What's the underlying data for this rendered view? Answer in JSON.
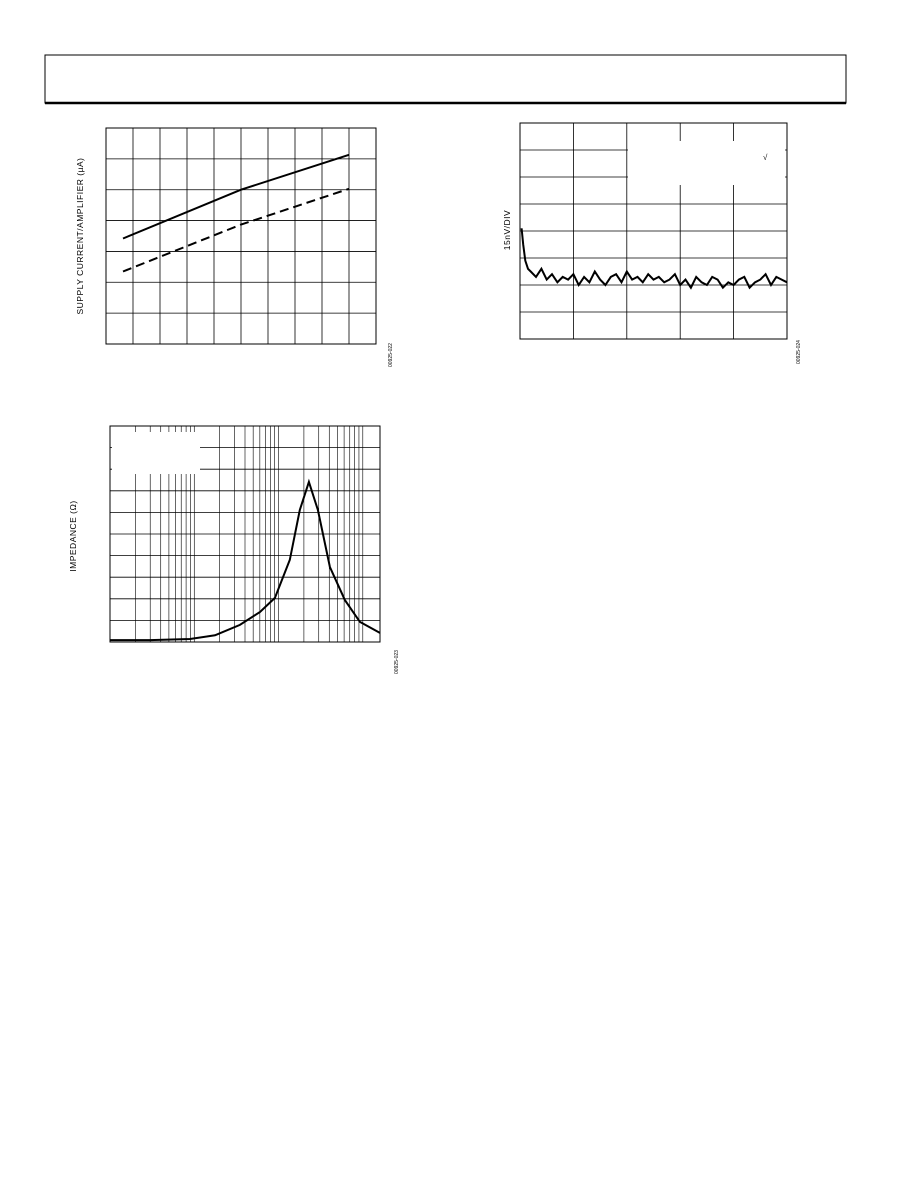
{
  "chart_data": [
    {
      "type": "line",
      "ylabel": "SUPPLY CURRENT/AMPLIFIER (µA)",
      "figure_id": "00925-022",
      "xlim": [
        0,
        10
      ],
      "ylim": [
        0,
        7
      ],
      "grid": true,
      "x": [
        0.63,
        5,
        9
      ],
      "series": [
        {
          "color": "#000000",
          "dashed": false,
          "values": [
            3.42,
            5.0,
            6.13
          ]
        },
        {
          "color": "#000000",
          "dashed": true,
          "values": [
            2.35,
            3.87,
            5.03
          ]
        }
      ]
    },
    {
      "type": "line",
      "ylabel": "15nV/DIV",
      "figure_id": "00925-024",
      "annotation": "√",
      "xlim": [
        0,
        5
      ],
      "ylim": [
        0,
        8
      ],
      "grid": true,
      "x": [
        0.03,
        0.06,
        0.1,
        0.15,
        0.2,
        0.3,
        0.4,
        0.5,
        0.6,
        0.7,
        0.8,
        0.9,
        1.0,
        1.1,
        1.2,
        1.3,
        1.4,
        1.5,
        1.6,
        1.7,
        1.8,
        1.9,
        2.0,
        2.1,
        2.2,
        2.3,
        2.4,
        2.5,
        2.6,
        2.7,
        2.8,
        2.9,
        3.0,
        3.1,
        3.2,
        3.3,
        3.4,
        3.5,
        3.6,
        3.7,
        3.8,
        3.9,
        4.0,
        4.1,
        4.2,
        4.3,
        4.4,
        4.5,
        4.6,
        4.7,
        4.8,
        4.9,
        5.0
      ],
      "series": [
        {
          "color": "#000000",
          "dashed": false,
          "values": [
            4.1,
            3.5,
            2.9,
            2.6,
            2.5,
            2.3,
            2.6,
            2.2,
            2.4,
            2.1,
            2.3,
            2.2,
            2.4,
            2.0,
            2.3,
            2.1,
            2.5,
            2.2,
            2.0,
            2.3,
            2.4,
            2.1,
            2.5,
            2.2,
            2.3,
            2.1,
            2.4,
            2.2,
            2.3,
            2.1,
            2.2,
            2.4,
            2.0,
            2.2,
            1.9,
            2.3,
            2.1,
            2.0,
            2.3,
            2.2,
            1.9,
            2.1,
            2.0,
            2.2,
            2.3,
            1.9,
            2.1,
            2.2,
            2.4,
            2.0,
            2.3,
            2.2,
            2.1
          ]
        }
      ]
    },
    {
      "type": "line",
      "ylabel": "IMPEDANCE (Ω)",
      "figure_id": "00925-023",
      "xscale": "log",
      "xlim": [
        1,
        1600
      ],
      "ylim": [
        0,
        10
      ],
      "grid": true,
      "x": [
        1,
        2.98,
        8.9,
        17.6,
        34.8,
        60.2,
        90.6,
        136,
        179,
        229,
        293,
        407,
        614,
        925,
        1596
      ],
      "series": [
        {
          "color": "#000000",
          "dashed": false,
          "values": [
            0.09,
            0.09,
            0.14,
            0.31,
            0.79,
            1.39,
            2.04,
            3.8,
            6.11,
            7.41,
            6.11,
            3.47,
            1.94,
            0.93,
            0.42
          ]
        }
      ]
    }
  ]
}
